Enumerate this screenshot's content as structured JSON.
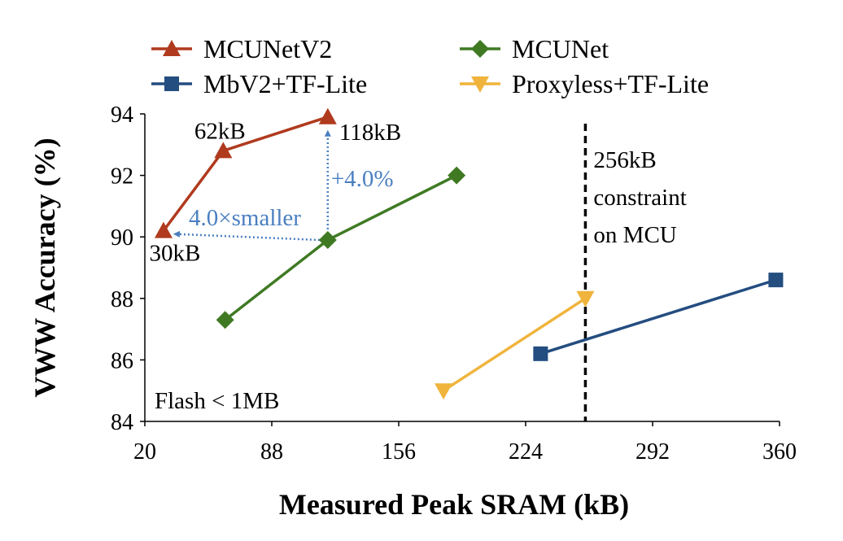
{
  "chart_data": {
    "type": "line",
    "xlabel": "Measured Peak SRAM (kB)",
    "ylabel": "VWW Accuracy (%)",
    "xlim": [
      20,
      360
    ],
    "ylim": [
      84,
      94
    ],
    "xticks": [
      20,
      88,
      156,
      224,
      292,
      360
    ],
    "yticks": [
      84,
      86,
      88,
      90,
      92,
      94
    ],
    "grid": false,
    "legend_placement": "top",
    "series": [
      {
        "name": "MCUNetV2",
        "marker": "triangle-up",
        "color": "#b03a1e",
        "points": [
          {
            "x": 30,
            "y": 90.2
          },
          {
            "x": 62,
            "y": 92.8
          },
          {
            "x": 118,
            "y": 93.9
          }
        ]
      },
      {
        "name": "MCUNet",
        "marker": "diamond",
        "color": "#3f7a23",
        "points": [
          {
            "x": 63,
            "y": 87.3
          },
          {
            "x": 118,
            "y": 89.9
          },
          {
            "x": 187,
            "y": 92.0
          }
        ]
      },
      {
        "name": "MbV2+TF-Lite",
        "marker": "square",
        "color": "#244d80",
        "points": [
          {
            "x": 232,
            "y": 86.2
          },
          {
            "x": 358,
            "y": 88.6
          }
        ]
      },
      {
        "name": "Proxyless+TF-Lite",
        "marker": "triangle-down",
        "color": "#f0b43c",
        "points": [
          {
            "x": 180,
            "y": 85.0
          },
          {
            "x": 256,
            "y": 88.0
          }
        ]
      }
    ],
    "reference_line": {
      "x": 256,
      "style": "dashed",
      "color": "#000000"
    },
    "annotations": {
      "label_30kb": "30kB",
      "label_62kb": "62kB",
      "label_118kb": "118kB",
      "constraint_line1": "256kB",
      "constraint_line2": "constraint",
      "constraint_line3": "on MCU",
      "accuracy_gain": "+4.0%",
      "memory_reduction": "4.0×smaller",
      "flash_note": "Flash < 1MB",
      "annotation_color": "#4a7fc1"
    }
  }
}
